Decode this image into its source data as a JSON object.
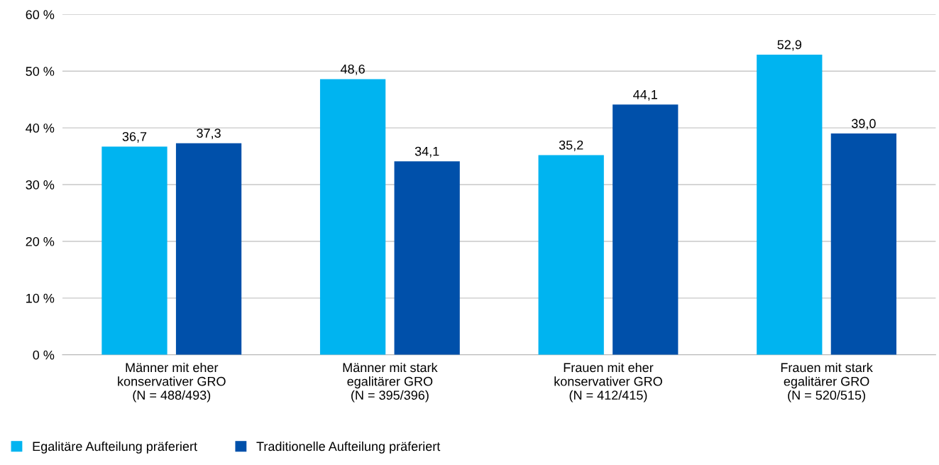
{
  "chart_data": {
    "type": "bar",
    "categories": [
      "Männer mit eher\nkonservativer GRO\n(N = 488/493)",
      "Männer mit stark\negalitärer GRO\n(N = 395/396)",
      "Frauen mit eher\nkonservativer GRO\n(N = 412/415)",
      "Frauen mit stark\negalitärer GRO\n(N = 520/515)"
    ],
    "series": [
      {
        "name": "Egalitäre Aufteilung präferiert",
        "color": "#00b4f0",
        "values": [
          36.7,
          48.6,
          35.2,
          52.9
        ],
        "value_labels": [
          "36,7",
          "48,6",
          "35,2",
          "52,9"
        ]
      },
      {
        "name": "Traditionelle Aufteilung präferiert",
        "color": "#0050aa",
        "values": [
          37.3,
          34.1,
          44.1,
          39.0
        ],
        "value_labels": [
          "37,3",
          "34,1",
          "44,1",
          "39,0"
        ]
      }
    ],
    "ylim": [
      0,
      60
    ],
    "yticks": [
      {
        "value": 0,
        "label": "0 %"
      },
      {
        "value": 10,
        "label": "10 %"
      },
      {
        "value": 20,
        "label": "20 %"
      },
      {
        "value": 30,
        "label": "30 %"
      },
      {
        "value": 40,
        "label": "40 %"
      },
      {
        "value": 50,
        "label": "50 %"
      },
      {
        "value": 60,
        "label": "60 %"
      }
    ],
    "grid": "y",
    "legend": "bottom left"
  }
}
